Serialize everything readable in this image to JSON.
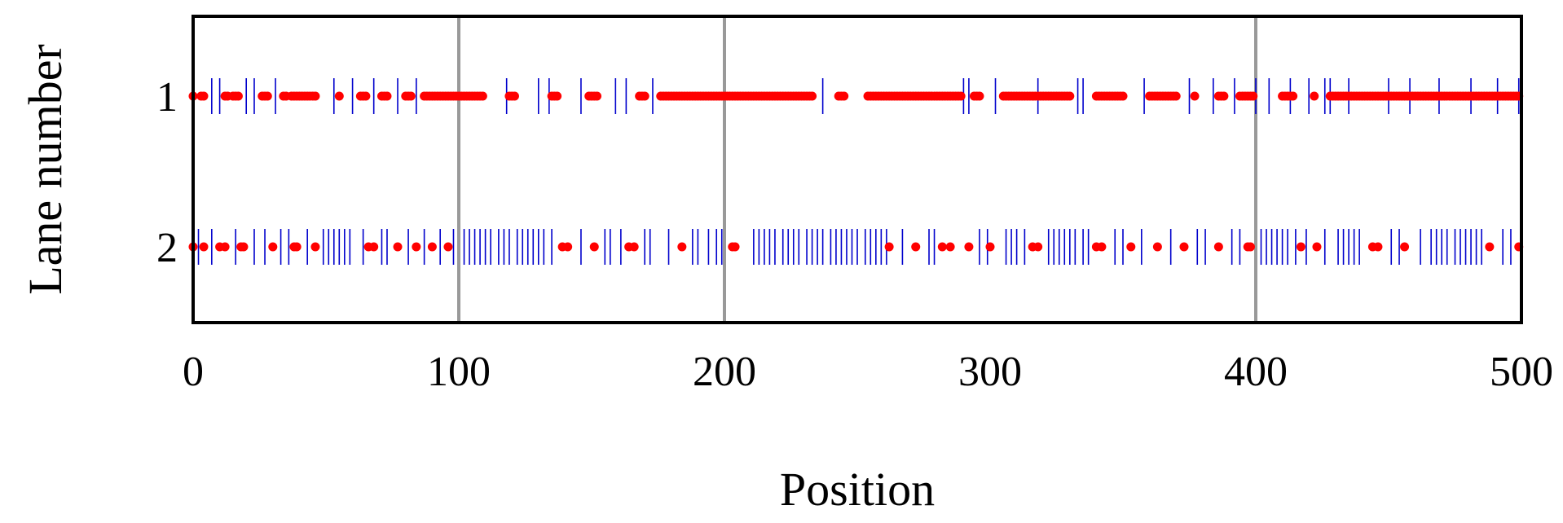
{
  "chart_data": {
    "type": "scatter",
    "xlabel": "Position",
    "ylabel": "Lane number",
    "xlim": [
      0,
      500
    ],
    "x_ticks": [
      "0",
      "100",
      "200",
      "300",
      "400",
      "500"
    ],
    "y_ticks": [
      "1",
      "2"
    ],
    "grid_x": [
      100,
      200,
      400
    ],
    "grid_color": "#999999",
    "marker_color": "#ff0000",
    "line_color": "#0000cc",
    "series": [
      {
        "lane": 1,
        "dots": [
          0,
          3,
          4,
          12,
          13,
          15,
          16,
          17,
          26,
          27,
          28,
          34,
          35,
          37,
          38,
          39,
          40,
          41,
          42,
          43,
          44,
          45,
          46,
          55,
          63,
          64,
          65,
          71,
          72,
          73,
          80,
          81,
          82,
          87,
          88,
          89,
          90,
          91,
          92,
          93,
          94,
          95,
          96,
          97,
          98,
          99,
          100,
          101,
          102,
          103,
          104,
          105,
          106,
          107,
          108,
          109,
          119,
          120,
          121,
          135,
          136,
          137,
          149,
          150,
          151,
          152,
          168,
          169,
          170,
          176,
          177,
          178,
          179,
          180,
          181,
          182,
          183,
          184,
          185,
          186,
          187,
          188,
          189,
          190,
          191,
          192,
          193,
          194,
          195,
          196,
          197,
          198,
          199,
          200,
          201,
          202,
          203,
          204,
          205,
          206,
          207,
          208,
          209,
          210,
          211,
          212,
          213,
          214,
          215,
          216,
          217,
          218,
          219,
          220,
          221,
          222,
          223,
          224,
          225,
          226,
          227,
          228,
          229,
          230,
          231,
          232,
          233,
          243,
          244,
          245,
          254,
          255,
          256,
          257,
          258,
          259,
          260,
          261,
          262,
          263,
          264,
          265,
          266,
          267,
          268,
          269,
          270,
          271,
          272,
          273,
          274,
          275,
          276,
          277,
          278,
          279,
          280,
          281,
          282,
          283,
          284,
          285,
          286,
          287,
          288,
          289,
          294,
          295,
          296,
          305,
          306,
          307,
          308,
          309,
          310,
          311,
          312,
          313,
          314,
          315,
          316,
          317,
          318,
          319,
          320,
          321,
          322,
          323,
          324,
          325,
          326,
          327,
          328,
          329,
          330,
          340,
          341,
          342,
          343,
          344,
          345,
          346,
          347,
          348,
          349,
          350,
          360,
          361,
          362,
          363,
          364,
          365,
          366,
          367,
          368,
          369,
          370,
          377,
          386,
          387,
          388,
          394,
          395,
          396,
          397,
          398,
          399,
          410,
          411,
          412,
          413,
          414,
          422,
          428,
          429,
          430,
          431,
          432,
          433,
          434,
          435,
          436,
          437,
          438,
          439,
          440,
          441,
          442,
          443,
          444,
          445,
          446,
          447,
          448,
          449,
          450,
          451,
          452,
          453,
          454,
          455,
          456,
          457,
          458,
          459,
          460,
          461,
          462,
          463,
          464,
          465,
          466,
          467,
          468,
          469,
          470,
          471,
          472,
          473,
          474,
          475,
          476,
          477,
          478,
          479,
          480,
          481,
          482,
          483,
          484,
          485,
          486,
          487,
          488,
          489,
          490,
          491,
          492,
          493,
          494,
          495,
          496,
          497,
          498,
          499
        ],
        "lines": [
          7,
          10,
          20,
          23,
          31,
          53,
          60,
          68,
          77,
          84,
          118,
          130,
          134,
          146,
          159,
          163,
          173,
          237,
          290,
          292,
          302,
          318,
          333,
          335,
          358,
          375,
          384,
          392,
          400,
          405,
          413,
          420,
          426,
          428,
          435,
          450,
          458,
          469,
          481,
          491,
          499
        ]
      },
      {
        "lane": 2,
        "dots": [
          0,
          4,
          10,
          12,
          18,
          19,
          30,
          38,
          39,
          46,
          66,
          68,
          77,
          84,
          90,
          96,
          139,
          141,
          151,
          164,
          166,
          184,
          203,
          204,
          262,
          272,
          282,
          285,
          292,
          300,
          316,
          318,
          340,
          342,
          353,
          363,
          373,
          386,
          397,
          398,
          417,
          423,
          444,
          446,
          456,
          488,
          499
        ],
        "lines": [
          2,
          7,
          16,
          23,
          27,
          33,
          36,
          43,
          49,
          51,
          53,
          55,
          57,
          59,
          64,
          71,
          73,
          81,
          87,
          93,
          98,
          102,
          104,
          106,
          108,
          110,
          112,
          115,
          117,
          119,
          122,
          124,
          126,
          128,
          130,
          132,
          135,
          146,
          155,
          157,
          161,
          170,
          172,
          179,
          188,
          190,
          194,
          197,
          199,
          211,
          213,
          215,
          217,
          219,
          222,
          224,
          226,
          228,
          231,
          233,
          235,
          237,
          240,
          242,
          244,
          246,
          248,
          250,
          253,
          255,
          257,
          259,
          261,
          267,
          277,
          279,
          296,
          299,
          306,
          308,
          310,
          313,
          322,
          324,
          326,
          328,
          330,
          332,
          335,
          337,
          347,
          350,
          357,
          368,
          378,
          381,
          391,
          394,
          402,
          404,
          406,
          408,
          410,
          412,
          415,
          419,
          426,
          431,
          433,
          435,
          437,
          439,
          451,
          454,
          462,
          466,
          468,
          470,
          472,
          475,
          477,
          479,
          481,
          483,
          485,
          493,
          496
        ]
      }
    ]
  }
}
